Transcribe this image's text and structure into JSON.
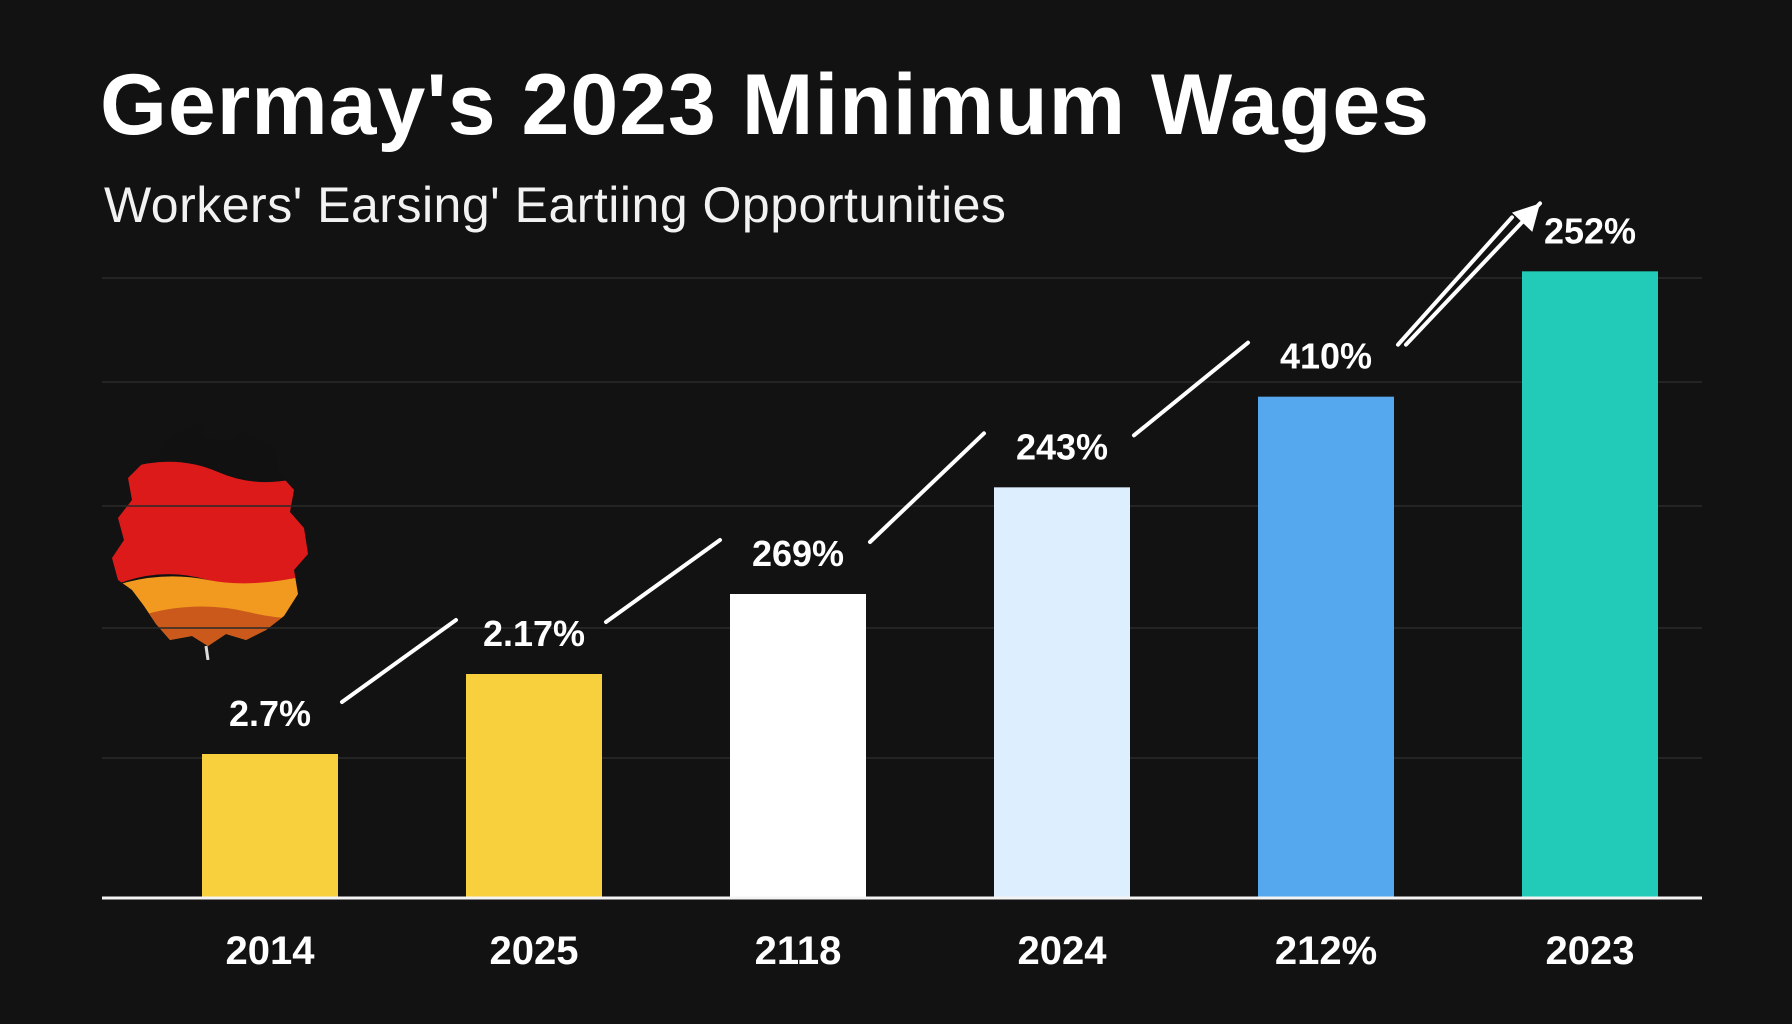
{
  "chart_data": {
    "type": "bar",
    "title": "Germay's 2023 Minimum Wages",
    "subtitle": "Workers' Earsing' Eartiing Opportunities",
    "categories": [
      "2014",
      "2025",
      "2118",
      "2024",
      "212%",
      "2023"
    ],
    "values": [
      108,
      168,
      228,
      308,
      376,
      470
    ],
    "data_labels": [
      "2.7%",
      "2.17%",
      "269%",
      "243%",
      "410%",
      "252%"
    ],
    "bar_colors": [
      "#f8cf3c",
      "#f8cf3c",
      "#ffffff",
      "#ddeeff",
      "#55a8ee",
      "#22cbb7"
    ],
    "ylim": [
      0,
      480
    ],
    "xlabel": "",
    "ylabel": "",
    "grid": true,
    "legend": "none",
    "trend_arrow": true
  },
  "colors": {
    "background": "#121212",
    "text": "#ffffff",
    "flag_black": "#111111",
    "flag_red": "#dd1a1a",
    "flag_gold": "#f19a1f"
  },
  "icons": {
    "flag": "germany-map-flag-icon",
    "arrow": "trend-arrow-icon"
  }
}
